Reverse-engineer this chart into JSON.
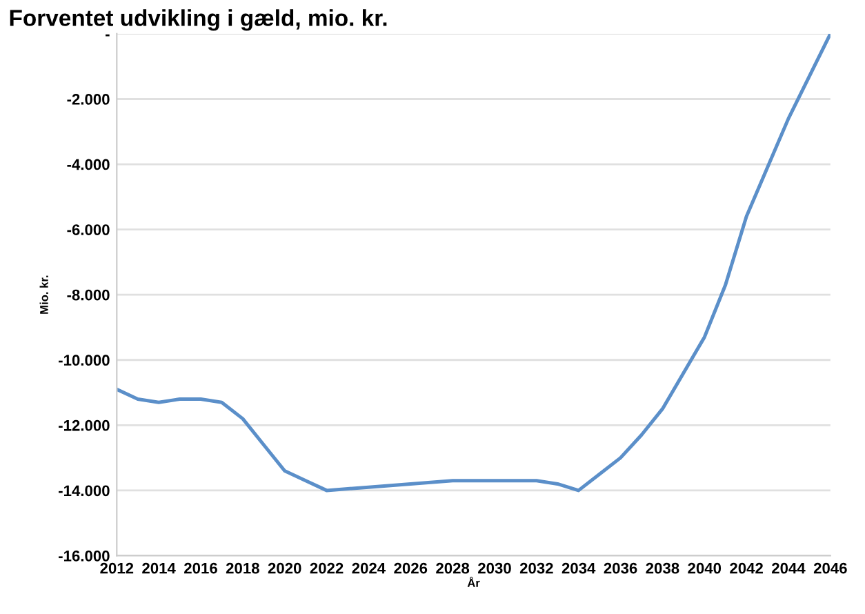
{
  "chart_data": {
    "type": "line",
    "title": "Forventet udvikling i gæld, mio. kr.",
    "xlabel": "År",
    "ylabel": "Mio. kr.",
    "x": [
      2012,
      2013,
      2014,
      2015,
      2016,
      2017,
      2018,
      2019,
      2020,
      2021,
      2022,
      2024,
      2026,
      2028,
      2030,
      2032,
      2033,
      2034,
      2035,
      2036,
      2037,
      2038,
      2039,
      2040,
      2041,
      2042,
      2043,
      2044,
      2045,
      2046
    ],
    "series": [
      {
        "color": "#5b8fc9",
        "values": [
          -10900,
          -11200,
          -11300,
          -11200,
          -11200,
          -11300,
          -11800,
          -12600,
          -13400,
          -13700,
          -14000,
          -13900,
          -13800,
          -13700,
          -13700,
          -13700,
          -13800,
          -14000,
          -13500,
          -13000,
          -12300,
          -11500,
          -10400,
          -9300,
          -7700,
          -5600,
          -4100,
          -2600,
          -1300,
          0
        ]
      }
    ],
    "xlim": [
      2012,
      2046
    ],
    "xticks": [
      2012,
      2014,
      2016,
      2018,
      2020,
      2022,
      2024,
      2026,
      2028,
      2030,
      2032,
      2034,
      2036,
      2038,
      2040,
      2042,
      2044,
      2046
    ],
    "ylim": [
      -16000,
      0
    ],
    "yticks": [
      {
        "value": -16000,
        "label": "-16.000"
      },
      {
        "value": -14000,
        "label": "-14.000"
      },
      {
        "value": -12000,
        "label": "-12.000"
      },
      {
        "value": -10000,
        "label": "-10.000"
      },
      {
        "value": -8000,
        "label": "-8.000"
      },
      {
        "value": -6000,
        "label": "-6.000"
      },
      {
        "value": -4000,
        "label": "-4.000"
      },
      {
        "value": -2000,
        "label": "-2.000"
      },
      {
        "value": 0,
        "label": "-"
      }
    ],
    "grid": "y",
    "legend": false,
    "marker": "none",
    "line_style": "solid"
  }
}
